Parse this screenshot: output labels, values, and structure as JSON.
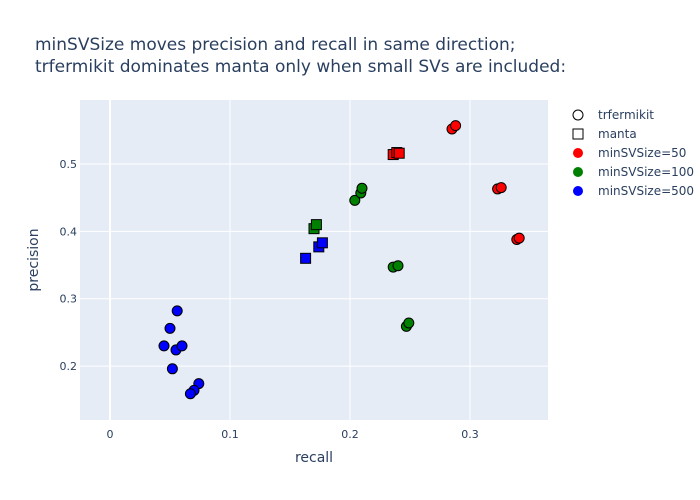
{
  "chart_data": {
    "type": "scatter",
    "title_lines": [
      "minSVSize moves precision and recall in same direction;",
      "trfermikit dominates manta only when small SVs are included:"
    ],
    "xlabel": "recall",
    "ylabel": "precision",
    "xlim": [
      -0.025,
      0.365
    ],
    "ylim": [
      0.12,
      0.595
    ],
    "xticks": [
      0,
      0.1,
      0.2,
      0.3
    ],
    "xtick_labels": [
      "0",
      "0.1",
      "0.2",
      "0.3"
    ],
    "yticks": [
      0.2,
      0.3,
      0.4,
      0.5
    ],
    "ytick_labels": [
      "0.2",
      "0.3",
      "0.4",
      "0.5"
    ],
    "grid": true,
    "legend_position": "right",
    "legend": [
      {
        "label": "trfermikit",
        "symbol": "circle",
        "color": "#ffffff"
      },
      {
        "label": "manta",
        "symbol": "square",
        "color": "#ffffff"
      },
      {
        "label": "minSVSize=50",
        "symbol": "circle",
        "color": "#ff0000"
      },
      {
        "label": "minSVSize=100",
        "symbol": "circle",
        "color": "#008000"
      },
      {
        "label": "minSVSize=500",
        "symbol": "circle",
        "color": "#0000ff"
      }
    ],
    "series": [
      {
        "tool": "trfermikit",
        "minSVSize": 50,
        "color": "#ff0000",
        "symbol": "circle",
        "points": [
          [
            0.285,
            0.552
          ],
          [
            0.288,
            0.557
          ],
          [
            0.323,
            0.463
          ],
          [
            0.326,
            0.465
          ],
          [
            0.339,
            0.388
          ],
          [
            0.341,
            0.39
          ]
        ]
      },
      {
        "tool": "manta",
        "minSVSize": 50,
        "color": "#ff0000",
        "symbol": "square",
        "points": [
          [
            0.236,
            0.514
          ],
          [
            0.239,
            0.517
          ],
          [
            0.241,
            0.516
          ]
        ]
      },
      {
        "tool": "trfermikit",
        "minSVSize": 100,
        "color": "#008000",
        "symbol": "circle",
        "points": [
          [
            0.204,
            0.446
          ],
          [
            0.209,
            0.457
          ],
          [
            0.21,
            0.464
          ],
          [
            0.236,
            0.347
          ],
          [
            0.24,
            0.349
          ],
          [
            0.247,
            0.259
          ],
          [
            0.249,
            0.264
          ]
        ]
      },
      {
        "tool": "manta",
        "minSVSize": 100,
        "color": "#008000",
        "symbol": "square",
        "points": [
          [
            0.17,
            0.404
          ],
          [
            0.172,
            0.41
          ]
        ]
      },
      {
        "tool": "trfermikit",
        "minSVSize": 500,
        "color": "#0000ff",
        "symbol": "circle",
        "points": [
          [
            0.056,
            0.282
          ],
          [
            0.05,
            0.256
          ],
          [
            0.045,
            0.23
          ],
          [
            0.055,
            0.224
          ],
          [
            0.06,
            0.23
          ],
          [
            0.052,
            0.196
          ],
          [
            0.074,
            0.174
          ],
          [
            0.07,
            0.164
          ],
          [
            0.067,
            0.159
          ]
        ]
      },
      {
        "tool": "manta",
        "minSVSize": 500,
        "color": "#0000ff",
        "symbol": "square",
        "points": [
          [
            0.163,
            0.36
          ],
          [
            0.174,
            0.377
          ],
          [
            0.177,
            0.383
          ]
        ]
      }
    ]
  }
}
